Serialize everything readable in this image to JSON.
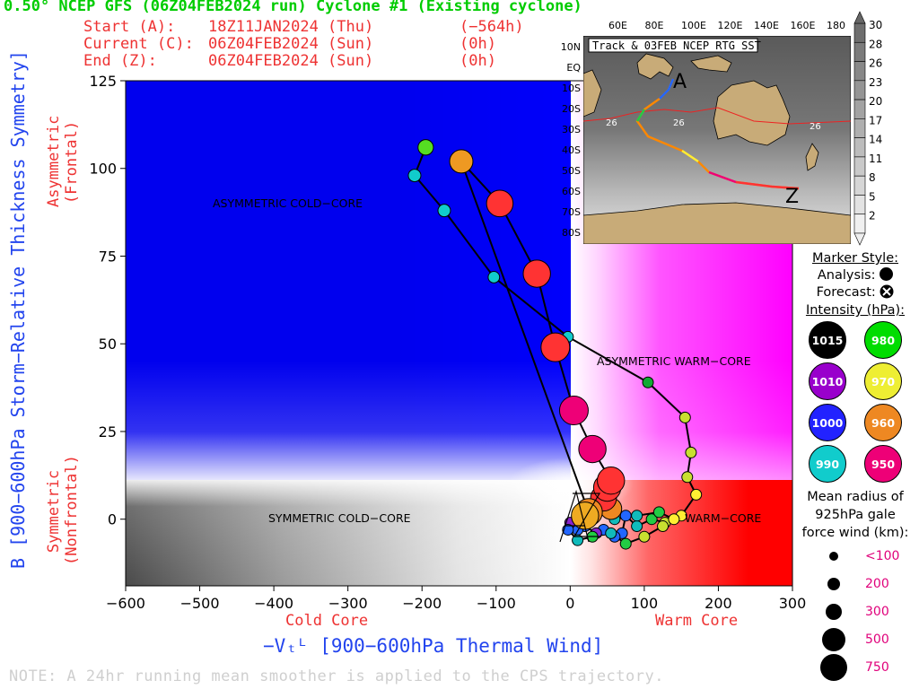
{
  "header": {
    "title": "0.50° NCEP GFS (06Z04FEB2024 run) Cyclone #1 (Existing cyclone)",
    "start_label": "Start (A):",
    "start_date": "18Z11JAN2024 (Thu)",
    "start_offset": "(−564h)",
    "current_label": "Current (C):",
    "current_date": "06Z04FEB2024 (Sun)",
    "current_offset": "(0h)",
    "end_label": "End (Z):",
    "end_date": "06Z04FEB2024 (Sun)",
    "end_offset": "(0h)"
  },
  "note": "NOTE:  A 24hr running mean smoother is applied to the CPS trajectory.",
  "axis_labels": {
    "y_main": "B [900−600hPa Storm−Relative Thickness Symmetry]",
    "y_asym": "Asymmetric",
    "y_asym_sub": "(Frontal)",
    "y_sym": "Symmetric",
    "y_sym_sub": "(Nonfrontal)",
    "x_main": "−Vₜᴸ [900−600hPa Thermal Wind]",
    "x_cold": "Cold Core",
    "x_warm": "Warm Core"
  },
  "regions": {
    "asym_cold": "ASYMMETRIC COLD−CORE",
    "asym_warm": "ASYMMETRIC WARM−CORE",
    "sym_cold": "SYMMETRIC COLD−CORE",
    "sym_warm": "WARM−CORE"
  },
  "legend": {
    "marker_style": "Marker Style:",
    "analysis": "Analysis:",
    "forecast": "Forecast:",
    "intensity": "Intensity (hPa):",
    "intensity_items": [
      {
        "label": "1015",
        "color": "#000000"
      },
      {
        "label": "980",
        "color": "#00dd00"
      },
      {
        "label": "1010",
        "color": "#9900cc"
      },
      {
        "label": "970",
        "color": "#eeee33"
      },
      {
        "label": "1000",
        "color": "#2222ff"
      },
      {
        "label": "960",
        "color": "#ee8822"
      },
      {
        "label": "990",
        "color": "#11cccc"
      },
      {
        "label": "950",
        "color": "#ee0077"
      }
    ],
    "radius_title_1": "Mean radius of",
    "radius_title_2": "925hPa gale",
    "radius_title_3": "force wind (km):",
    "radius_items": [
      {
        "label": "<100",
        "km": 100
      },
      {
        "label": "200",
        "km": 200
      },
      {
        "label": "300",
        "km": 300
      },
      {
        "label": "500",
        "km": 500
      },
      {
        "label": "750",
        "km": 750
      }
    ]
  },
  "inset": {
    "title": "Track & 03FEB NCEP RTG SST",
    "lon_labels": [
      "60E",
      "80E",
      "100E",
      "120E",
      "140E",
      "160E",
      "180"
    ],
    "lat_labels": [
      "10N",
      "EQ",
      "10S",
      "20S",
      "30S",
      "40S",
      "50S",
      "60S",
      "70S",
      "80S"
    ],
    "contour_labels": [
      "26",
      "26",
      "26"
    ],
    "start_marker": "A",
    "end_marker": "Z",
    "colorbar_labels": [
      "30",
      "28",
      "26",
      "23",
      "20",
      "17",
      "14",
      "11",
      "8",
      "5",
      "2"
    ]
  },
  "chart_data": {
    "type": "scatter",
    "title": "0.50° NCEP GFS (06Z04FEB2024 run) Cyclone #1 (Existing cyclone)",
    "xlabel": "−Vₜᴸ [900−600hPa Thermal Wind]",
    "ylabel": "B [900−600hPa Storm−Relative Thickness Symmetry]",
    "xlim": [
      -600,
      300
    ],
    "ylim": [
      -19,
      125
    ],
    "x_ticks": [
      -600,
      -500,
      -400,
      -300,
      -200,
      -100,
      0,
      100,
      200,
      300
    ],
    "x_tick_labels": [
      "−600",
      "−500",
      "−400",
      "−300",
      "−200",
      "−100",
      "0",
      "100",
      "200",
      "300"
    ],
    "y_ticks": [
      0,
      25,
      50,
      75,
      100,
      125
    ],
    "y_tick_labels": [
      "0",
      "25",
      "50",
      "75",
      "100",
      "125"
    ],
    "track": [
      {
        "x": -195,
        "y": 106,
        "color": "#55dd22",
        "km": 230
      },
      {
        "x": -210,
        "y": 98,
        "color": "#11cccc",
        "km": 150
      },
      {
        "x": -170,
        "y": 88,
        "color": "#11cccc",
        "km": 150
      },
      {
        "x": -103,
        "y": 69,
        "color": "#11cccc",
        "km": 120
      },
      {
        "x": -3,
        "y": 52,
        "color": "#11cccc",
        "km": 100
      },
      {
        "x": 105,
        "y": 39,
        "color": "#11aa33",
        "km": 100
      },
      {
        "x": 155,
        "y": 29,
        "color": "#c8e030",
        "km": 100
      },
      {
        "x": 163,
        "y": 19,
        "color": "#c8e030",
        "km": 100
      },
      {
        "x": 158,
        "y": 12,
        "color": "#c8e030",
        "km": 100
      },
      {
        "x": 170,
        "y": 7,
        "color": "#ffee33",
        "km": 100
      },
      {
        "x": 150,
        "y": 1,
        "color": "#ffee33",
        "km": 100
      },
      {
        "x": 128,
        "y": -1,
        "color": "#c8e030",
        "km": 100
      },
      {
        "x": 110,
        "y": 0,
        "color": "#22cc44",
        "km": 100
      },
      {
        "x": 90,
        "y": -2,
        "color": "#11bbbb",
        "km": 100
      },
      {
        "x": 75,
        "y": 1,
        "color": "#2266ff",
        "km": 100
      },
      {
        "x": 70,
        "y": -4,
        "color": "#2266ff",
        "km": 100
      },
      {
        "x": 60,
        "y": -5,
        "color": "#2266ff",
        "km": 100
      },
      {
        "x": 45,
        "y": -3,
        "color": "#2266ff",
        "km": 100
      },
      {
        "x": 35,
        "y": -4,
        "color": "#8822cc",
        "km": 100
      },
      {
        "x": 20,
        "y": -2,
        "color": "#2266ff",
        "km": 100
      },
      {
        "x": 10,
        "y": -3,
        "color": "#2266ff",
        "km": 100
      },
      {
        "x": 0,
        "y": -1,
        "color": "#8822cc",
        "km": 100
      },
      {
        "x": -3,
        "y": -3,
        "color": "#2266ff",
        "km": 100
      },
      {
        "x": 10,
        "y": -6,
        "color": "#11bbbb",
        "km": 100
      },
      {
        "x": 30,
        "y": -5,
        "color": "#22cc44",
        "km": 100
      },
      {
        "x": 55,
        "y": -4,
        "color": "#11bbbb",
        "km": 100
      },
      {
        "x": 75,
        "y": -7,
        "color": "#22cc44",
        "km": 100
      },
      {
        "x": 100,
        "y": -5,
        "color": "#c8e030",
        "km": 100
      },
      {
        "x": 125,
        "y": -2,
        "color": "#c8e030",
        "km": 100
      },
      {
        "x": 140,
        "y": 0,
        "color": "#ffee33",
        "km": 100
      },
      {
        "x": 120,
        "y": 2,
        "color": "#22cc44",
        "km": 100
      },
      {
        "x": 90,
        "y": 1,
        "color": "#11bbbb",
        "km": 100
      },
      {
        "x": 60,
        "y": 0,
        "color": "#11bbbb",
        "km": 100
      },
      {
        "x": 30,
        "y": 3,
        "color": "#2266ff",
        "km": 100
      },
      {
        "x": 55,
        "y": 3,
        "color": "#ee8822",
        "km": 400
      },
      {
        "x": 45,
        "y": 6,
        "color": "#ff3333",
        "km": 520
      },
      {
        "x": 50,
        "y": 9,
        "color": "#ff3333",
        "km": 560
      },
      {
        "x": 55,
        "y": 11,
        "color": "#ff3333",
        "km": 560
      },
      {
        "x": 30,
        "y": 20,
        "color": "#ee0077",
        "km": 560
      },
      {
        "x": 5,
        "y": 31,
        "color": "#ee0077",
        "km": 620
      },
      {
        "x": -20,
        "y": 49,
        "color": "#ff3333",
        "km": 600
      },
      {
        "x": -45,
        "y": 70,
        "color": "#ff3333",
        "km": 560
      },
      {
        "x": -95,
        "y": 90,
        "color": "#ff3333",
        "km": 540
      },
      {
        "x": -147,
        "y": 102,
        "color": "#ee9922",
        "km": 450
      },
      {
        "x": 25,
        "y": 2,
        "color": "#ee8822",
        "km": 560
      },
      {
        "x": 20,
        "y": 1,
        "color": "#eeaa22",
        "km": 560
      }
    ],
    "grid": false
  }
}
